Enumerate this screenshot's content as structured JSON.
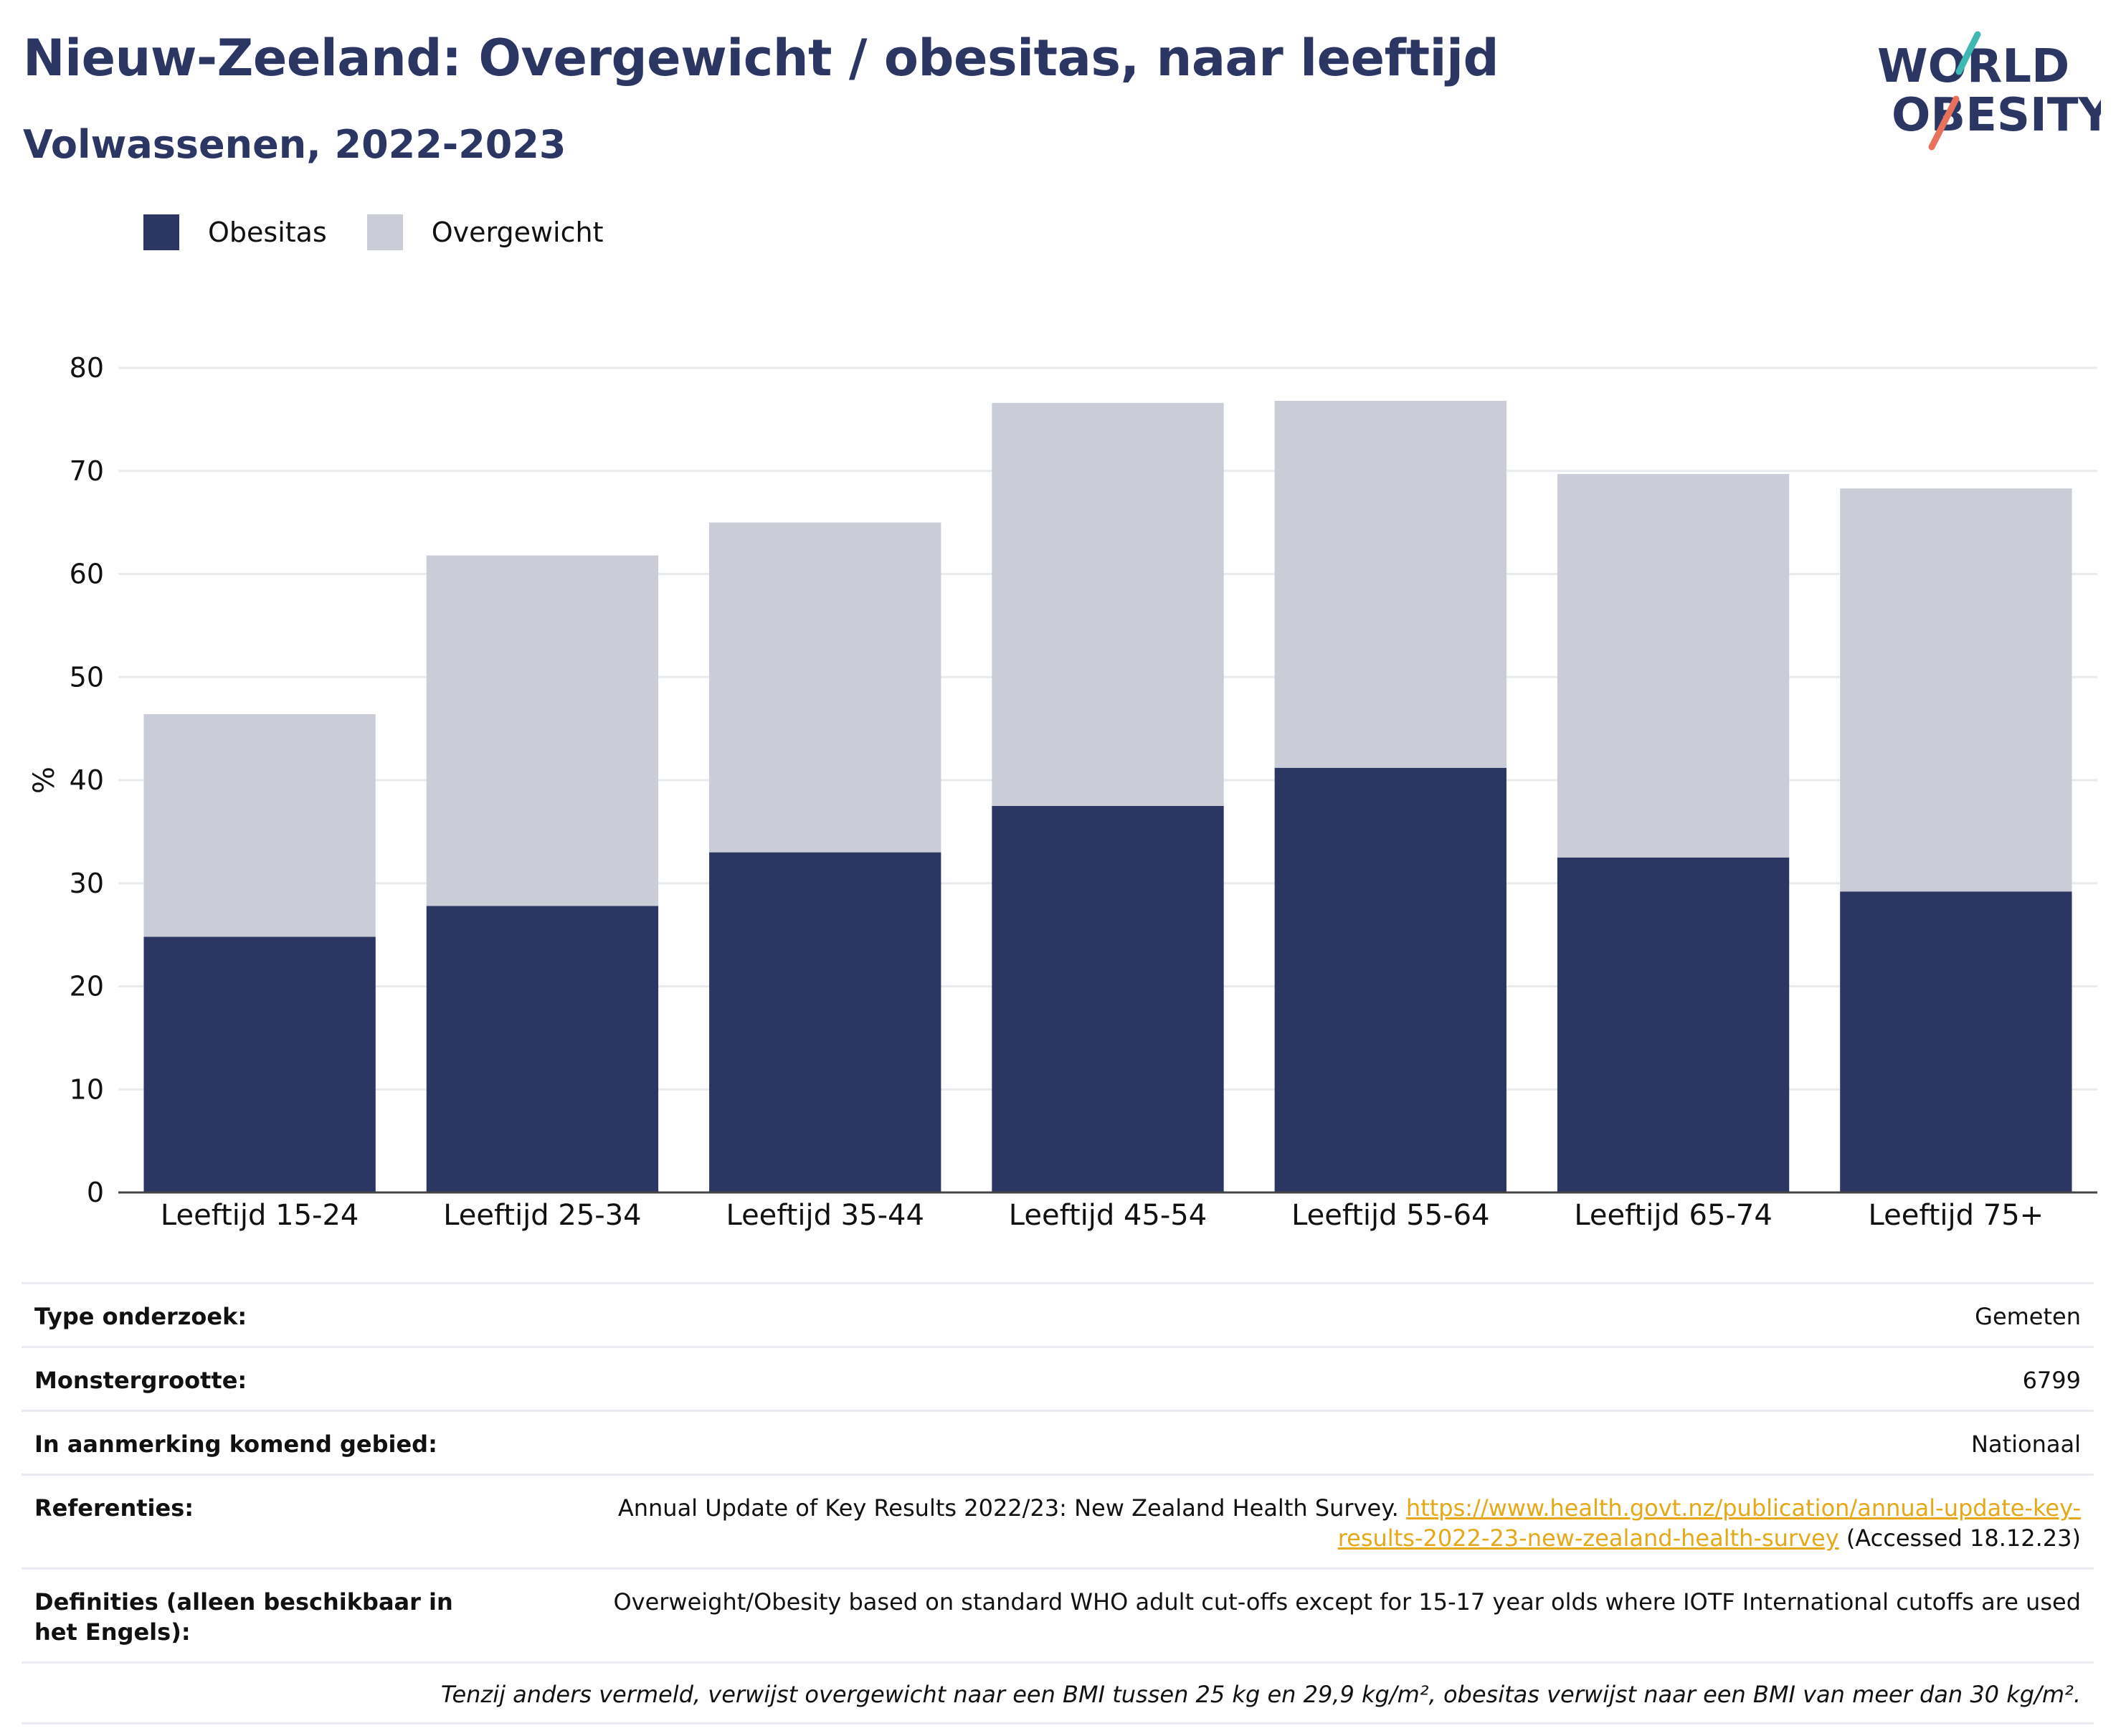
{
  "header": {
    "title": "Nieuw-Zeeland: Overgewicht / obesitas, naar leeftijd",
    "subtitle": "Volwassenen, 2022-2023"
  },
  "logo": {
    "line1": "WORLD",
    "line2": "OBESITY"
  },
  "colors": {
    "obesity": "#2b3663",
    "overweight": "#cacdd8",
    "text": "#2b3663",
    "link": "#e6a817"
  },
  "chart_data": {
    "type": "bar",
    "stacked": true,
    "categories": [
      "Leeftijd 15-24",
      "Leeftijd 25-34",
      "Leeftijd 35-44",
      "Leeftijd 45-54",
      "Leeftijd 55-64",
      "Leeftijd 65-74",
      "Leeftijd 75+"
    ],
    "series": [
      {
        "name": "Obesitas",
        "color": "#2b3663",
        "values": [
          24.8,
          27.8,
          33.0,
          37.5,
          41.2,
          32.5,
          29.2
        ]
      },
      {
        "name": "Overgewicht",
        "color": "#cacdd8",
        "values": [
          21.6,
          34.0,
          32.0,
          39.1,
          35.6,
          37.2,
          39.1
        ]
      }
    ],
    "ylabel": "%",
    "ylim": [
      0,
      80
    ],
    "yticks": [
      0,
      10,
      20,
      30,
      40,
      50,
      60,
      70,
      80
    ],
    "grid": true,
    "legend": "top-left"
  },
  "meta": {
    "rows": [
      {
        "key": "Type onderzoek:",
        "value": "Gemeten"
      },
      {
        "key": "Monstergrootte:",
        "value": "6799"
      },
      {
        "key": "In aanmerking komend gebied:",
        "value": "Nationaal"
      }
    ],
    "references": {
      "key": "Referenties:",
      "text": "Annual Update of Key Results 2022/23: New Zealand Health Survey.",
      "link": "https://www.health.govt.nz/publication/annual-update-key-results-2022-23-new-zealand-health-survey",
      "accessed": "(Accessed 18.12.23)"
    },
    "definitions": {
      "key": "Definities (alleen beschikbaar in het Engels):",
      "value": "Overweight/Obesity based on standard WHO adult cut-offs except for 15-17 year olds where IOTF International cutoffs are used"
    },
    "note": "Tenzij anders vermeld, verwijst overgewicht naar een BMI tussen 25 kg en 29,9 kg/m², obesitas verwijst naar een BMI van meer dan 30 kg/m²."
  }
}
